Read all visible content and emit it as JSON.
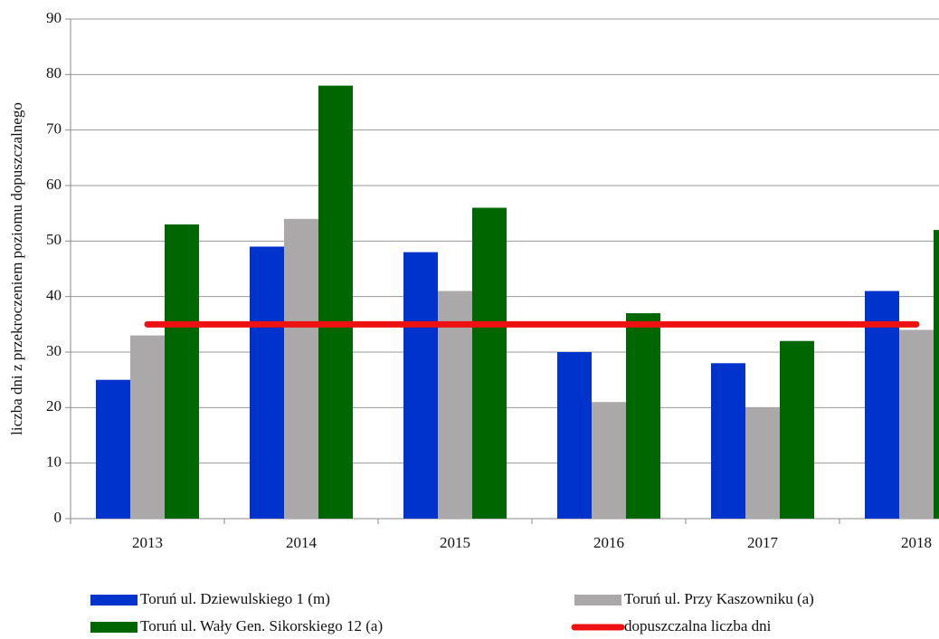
{
  "chart_data": {
    "type": "bar",
    "y_label": "liczba dni z przekroczeniem poziomu dopuszczalnego",
    "categories": [
      "2013",
      "2014",
      "2015",
      "2016",
      "2017",
      "2018"
    ],
    "series": [
      {
        "name": "Toruń ul. Dziewulskiego 1 (m)",
        "color": "#0033cc",
        "values": [
          25,
          49,
          48,
          30,
          28,
          41
        ]
      },
      {
        "name": "Toruń ul. Przy Kaszowniku (a)",
        "color": "#aaa8a8",
        "values": [
          33,
          54,
          41,
          21,
          20,
          34
        ]
      },
      {
        "name": "Toruń ul. Wały Gen. Sikorskiego 12 (a)",
        "color": "#006600",
        "values": [
          53,
          78,
          56,
          37,
          32,
          52
        ]
      },
      {
        "name": "dopuszczalna liczba dni",
        "color": "#ee1111",
        "type": "line",
        "values": [
          35,
          35,
          35,
          35,
          35,
          35
        ]
      }
    ],
    "ylim": [
      0,
      90
    ],
    "yticks": [
      0,
      10,
      20,
      30,
      40,
      50,
      60,
      70,
      80,
      90
    ],
    "grid": true,
    "legend": "bottom"
  }
}
